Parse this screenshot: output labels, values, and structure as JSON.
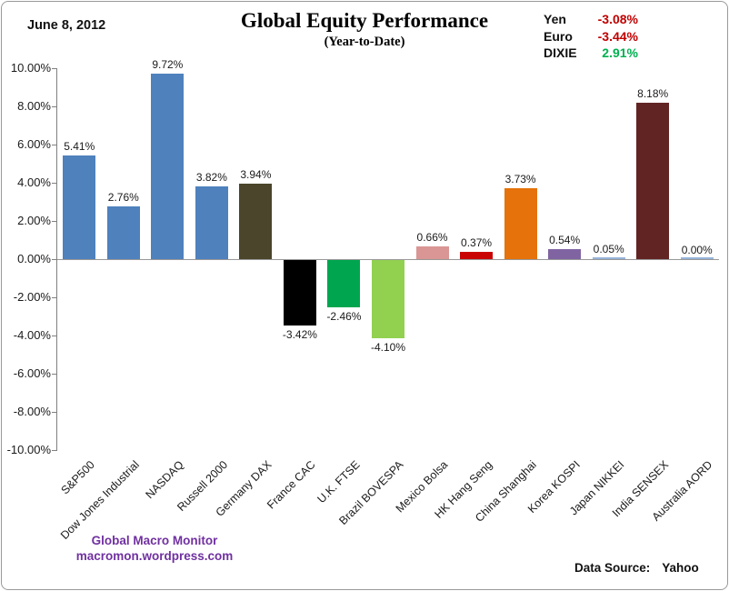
{
  "header": {
    "date": "June 8, 2012",
    "title": "Global Equity Performance",
    "subtitle": "(Year-to-Date)"
  },
  "fx_legend": {
    "rows": [
      {
        "label": "Yen",
        "value": "-3.08%",
        "color": "#C00000"
      },
      {
        "label": "Euro",
        "value": "-3.44%",
        "color": "#C00000"
      },
      {
        "label": "DIXIE",
        "value": "2.91%",
        "color": "#00B050"
      }
    ]
  },
  "chart_data": {
    "type": "bar",
    "title": "Global Equity Performance",
    "subtitle": "(Year-to-Date)",
    "categories": [
      "S&P500",
      "Dow Jones Industrial",
      "NASDAQ",
      "Russell 2000",
      "Germany DAX",
      "France CAC",
      "U.K. FTSE",
      "Brazil BOVESPA",
      "Mexico Bolsa",
      "HK Hang Seng",
      "China Shanghai",
      "Korea KOSPI",
      "Japan NIKKEI",
      "India SENSEX",
      "Australia AORD"
    ],
    "values": [
      5.41,
      2.76,
      9.72,
      3.82,
      3.94,
      -3.42,
      -2.46,
      -4.1,
      0.66,
      0.37,
      3.73,
      0.54,
      0.05,
      8.18,
      0.0
    ],
    "value_labels": [
      "5.41%",
      "2.76%",
      "9.72%",
      "3.82%",
      "3.94%",
      "-3.42%",
      "-2.46%",
      "-4.10%",
      "0.66%",
      "0.37%",
      "3.73%",
      "0.54%",
      "0.05%",
      "8.18%",
      "0.00%"
    ],
    "bar_colors": [
      "#4F81BD",
      "#4F81BD",
      "#4F81BD",
      "#4F81BD",
      "#4A452B",
      "#000000",
      "#00A64F",
      "#92D050",
      "#D99694",
      "#C90202",
      "#E5720A",
      "#8064A2",
      "#95B3D7",
      "#622423",
      "#95B3D7"
    ],
    "ylim": [
      -10,
      10
    ],
    "ytick_step": 2,
    "ytick_labels": [
      "10.00%",
      "8.00%",
      "6.00%",
      "4.00%",
      "2.00%",
      "0.00%",
      "-2.00%",
      "-4.00%",
      "-6.00%",
      "-8.00%",
      "-10.00%"
    ],
    "grid": false,
    "legend_position": "none",
    "xlabel": "",
    "ylabel": ""
  },
  "footer": {
    "branding_line1": "Global Macro Monitor",
    "branding_line2": "macromon.wordpress.com",
    "branding_color": "#7030A0",
    "datasource_label": "Data Source:",
    "datasource_value": "Yahoo"
  }
}
